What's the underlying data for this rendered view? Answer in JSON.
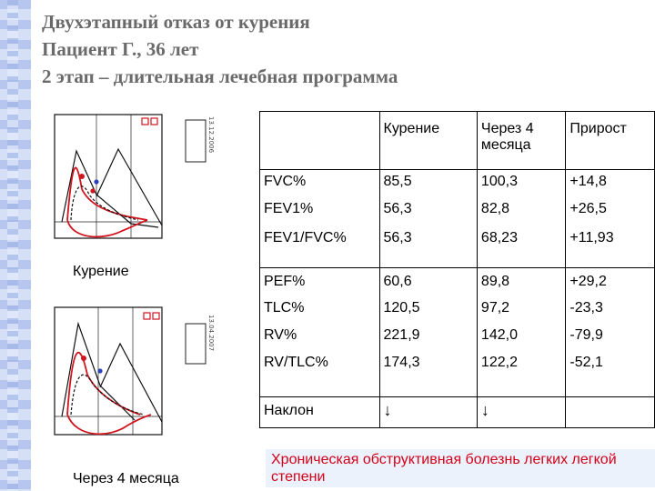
{
  "title": {
    "line1": "Двухэтапный отказ от курения",
    "line2": "Пациент Г., 36 лет",
    "line3": "2 этап – длительная лечебная программа"
  },
  "charts": {
    "top_caption": "Курение",
    "bottom_caption": "Через 4 месяца",
    "top_date": "13.12.2006",
    "bottom_date": "13.04.2007"
  },
  "table": {
    "headers": [
      "",
      "Курение",
      "Через 4 месяца",
      "Прирост"
    ],
    "rows": [
      {
        "label": "FVC%",
        "smoking": "85,5",
        "after": "100,3",
        "gain": "+14,8"
      },
      {
        "label": "FEV1%",
        "smoking": "56,3",
        "after": "82,8",
        "gain": "+26,5"
      },
      {
        "label": "FEV1/FVC%",
        "smoking": "56,3",
        "after": "68,23",
        "gain": "+11,93"
      },
      {
        "label": "PEF%",
        "smoking": "60,6",
        "after": "89,8",
        "gain": "+29,2"
      },
      {
        "label": "TLC%",
        "smoking": "120,5",
        "after": "97,2",
        "gain": "-23,3"
      },
      {
        "label": "RV%",
        "smoking": "221,9",
        "after": "142,0",
        "gain": "-79,9"
      },
      {
        "label": "RV/TLC%",
        "smoking": "174,3",
        "after": "122,2",
        "gain": "-52,1"
      },
      {
        "label": "Наклон",
        "smoking": "↓",
        "after": "↓",
        "gain": ""
      }
    ]
  },
  "footer": "Хроническая обструктивная болезнь легких легкой степени",
  "colors": {
    "title": "#6a6a6a",
    "footer_text": "#d4001a",
    "footer_bg": "#ebf2fc",
    "stripe": "#b7c6ef"
  }
}
